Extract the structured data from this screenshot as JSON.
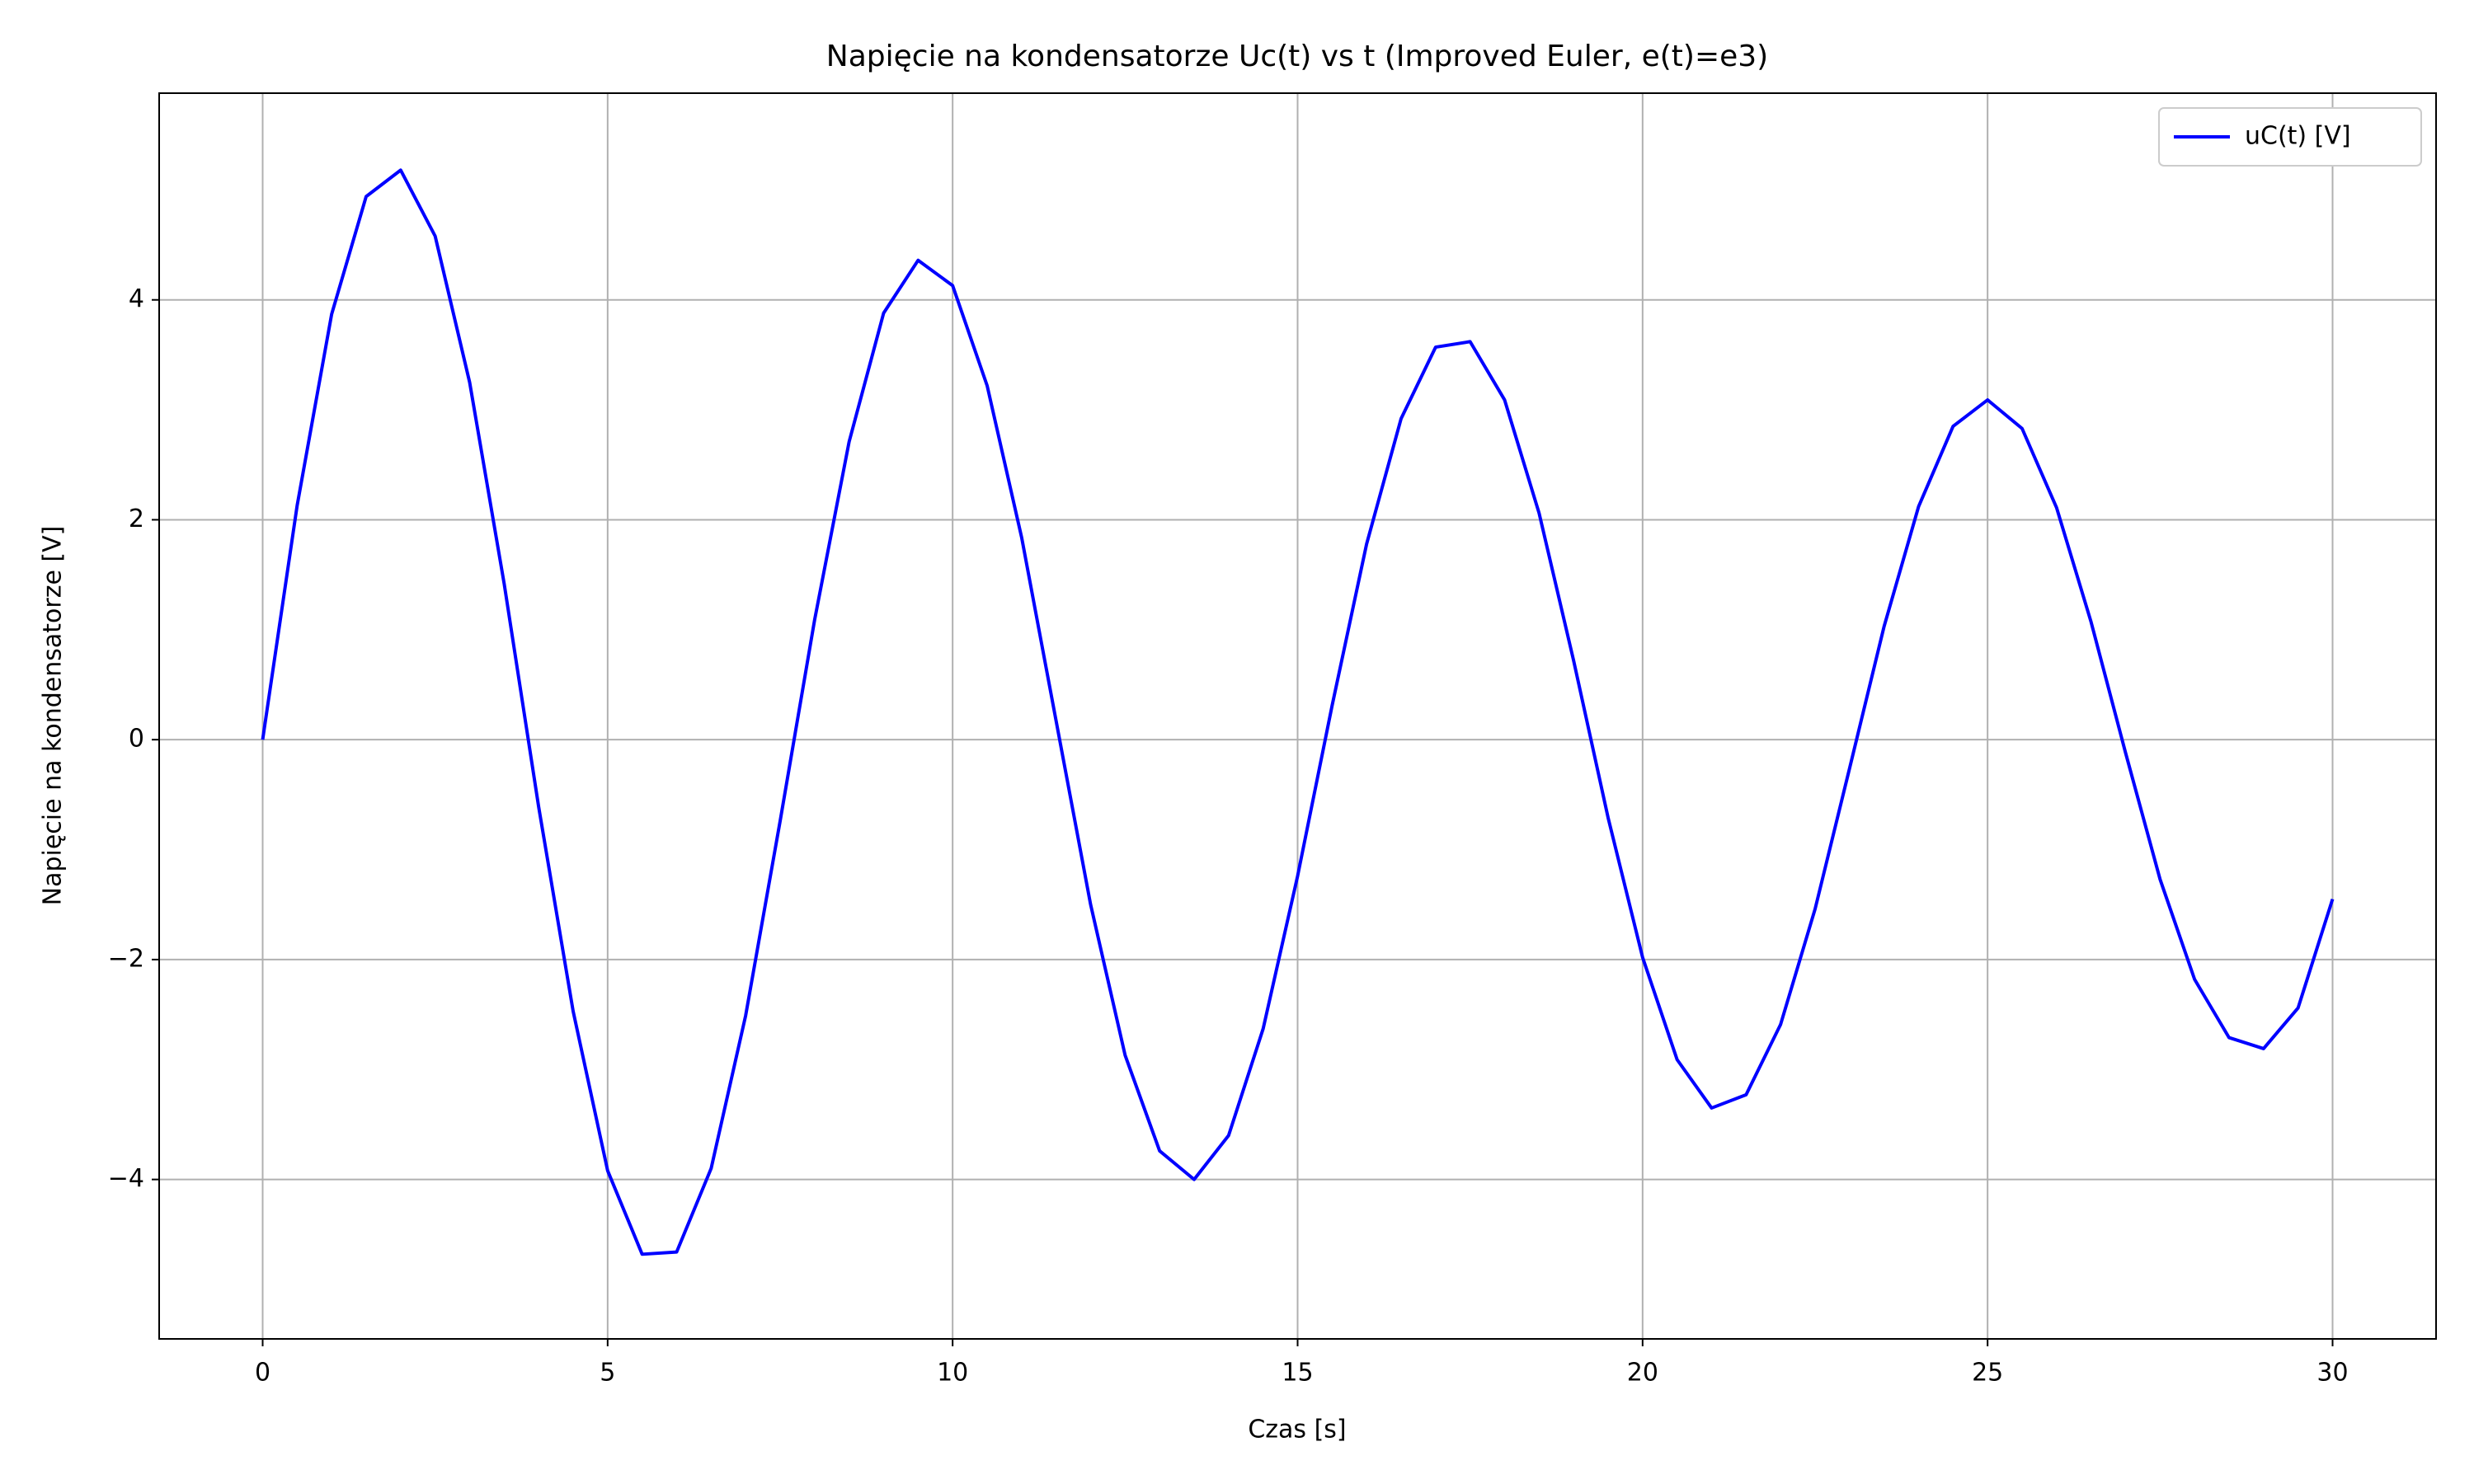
{
  "chart_data": {
    "type": "line",
    "title": "Napięcie na kondensatorze Uc(t) vs t (Improved Euler, e(t)=e3)",
    "x_label": "Czas [s]",
    "y_label": "Napięcie na kondensatorze [V]",
    "x": [
      0,
      0.5,
      1,
      1.5,
      2,
      2.5,
      3,
      3.5,
      4,
      4.5,
      5,
      5.5,
      6,
      6.5,
      7,
      7.5,
      8,
      8.5,
      9,
      9.5,
      10,
      10.5,
      11,
      11.5,
      12,
      12.5,
      13,
      13.5,
      14,
      14.5,
      15,
      15.5,
      16,
      16.5,
      17,
      17.5,
      18,
      18.5,
      19,
      19.5,
      20,
      20.5,
      21,
      21.5,
      22,
      22.5,
      23,
      23.5,
      24,
      24.5,
      25,
      25.5,
      26,
      26.5,
      27,
      27.5,
      28,
      28.5,
      29,
      29.5,
      30
    ],
    "series": [
      {
        "name": "uC(t) [V]",
        "color": "#0000ff",
        "values": [
          0,
          2.13,
          3.87,
          4.94,
          5.18,
          4.58,
          3.25,
          1.42,
          -0.61,
          -2.47,
          -3.92,
          -4.68,
          -4.66,
          -3.9,
          -2.51,
          -0.74,
          1.09,
          2.71,
          3.88,
          4.36,
          4.13,
          3.22,
          1.84,
          0.17,
          -1.5,
          -2.87,
          -3.74,
          -4.0,
          -3.6,
          -2.63,
          -1.24,
          0.31,
          1.78,
          2.92,
          3.57,
          3.62,
          3.09,
          2.06,
          0.72,
          -0.71,
          -1.98,
          -2.91,
          -3.35,
          -3.23,
          -2.59,
          -1.54,
          -0.26,
          1.03,
          2.12,
          2.85,
          3.09,
          2.83,
          2.11,
          1.07,
          -0.12,
          -1.27,
          -2.18,
          -2.71,
          -2.81,
          -2.44,
          -1.45
        ]
      }
    ],
    "xlim": [
      -1.5,
      31.5
    ],
    "ylim": [
      -5.45,
      5.88
    ],
    "xticks": [
      0,
      5,
      10,
      15,
      20,
      25,
      30
    ],
    "yticks": [
      {
        "value": -4,
        "label": "−4"
      },
      {
        "value": -2,
        "label": "−2"
      },
      0,
      2,
      4
    ],
    "grid": true,
    "legend": "upper right"
  }
}
